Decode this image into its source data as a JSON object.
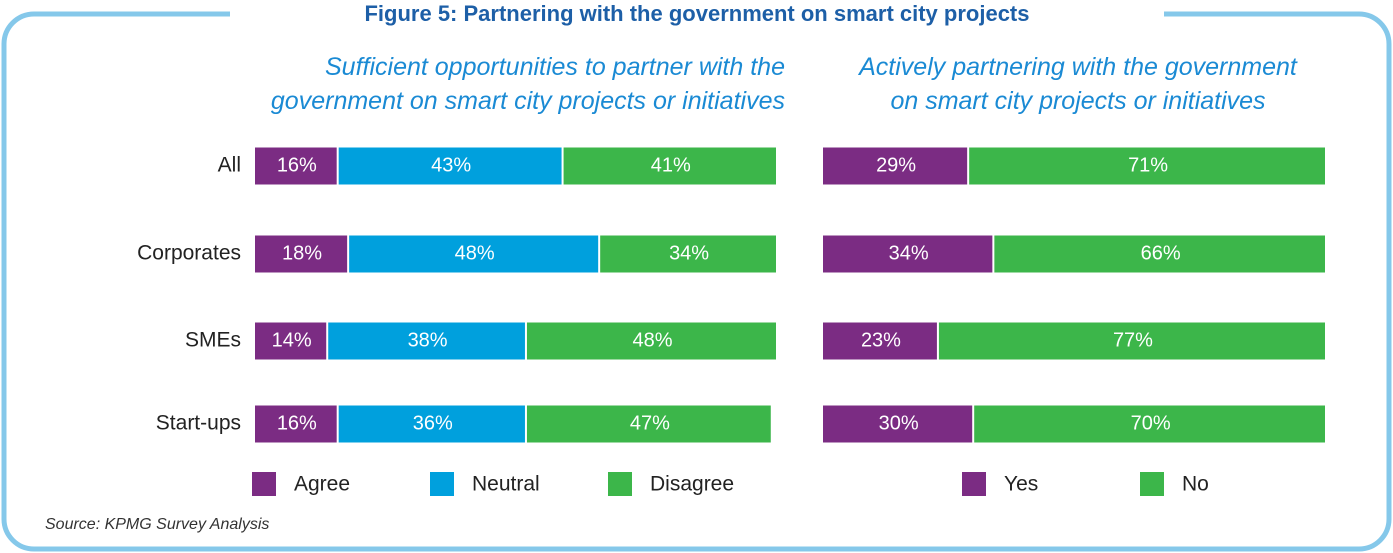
{
  "title": "Figure 5: Partnering with the government on smart city projects",
  "source": "Source: KPMG Survey Analysis",
  "chart_data": [
    {
      "type": "bar",
      "stacked": true,
      "orientation": "horizontal",
      "title": "Sufficient opportunities to partner with the\ngovernment on smart city projects or initiatives",
      "categories": [
        "All",
        "Corporates",
        "SMEs",
        "Start-ups"
      ],
      "xlim": [
        0,
        100
      ],
      "series": [
        {
          "name": "Agree",
          "color": "#7b2c83",
          "values": [
            16,
            18,
            14,
            16
          ],
          "value_labels": [
            "16%",
            "18%",
            "14%",
            "16%"
          ]
        },
        {
          "name": "Neutral",
          "color": "#00a0dd",
          "values": [
            43,
            48,
            38,
            36
          ],
          "value_labels": [
            "43%",
            "48%",
            "38%",
            "36%"
          ]
        },
        {
          "name": "Disagree",
          "color": "#3cb64a",
          "values": [
            41,
            34,
            48,
            47
          ],
          "value_labels": [
            "41%",
            "34%",
            "48%",
            "47%"
          ]
        }
      ]
    },
    {
      "type": "bar",
      "stacked": true,
      "orientation": "horizontal",
      "title": "Actively partnering with the government\non smart city projects or initiatives",
      "xlim": [
        0,
        100
      ],
      "series": [
        {
          "name": "Yes",
          "color": "#7b2c83",
          "values": [
            29,
            34,
            23,
            30
          ],
          "value_labels": [
            "29%",
            "34%",
            "23%",
            "30%"
          ]
        },
        {
          "name": "No",
          "color": "#3cb64a",
          "values": [
            71,
            66,
            77,
            70
          ],
          "value_labels": [
            "71%",
            "66%",
            "77%",
            "70%"
          ]
        }
      ]
    }
  ]
}
